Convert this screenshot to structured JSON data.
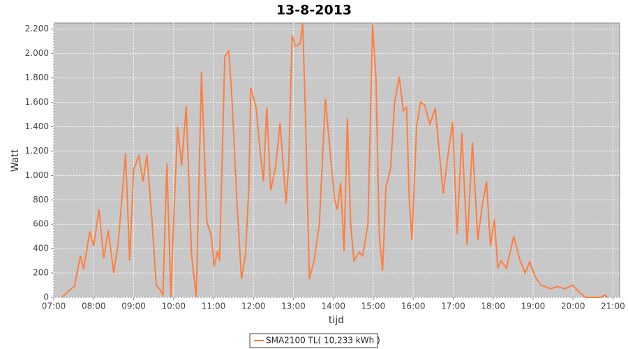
{
  "chart_data": {
    "type": "line",
    "title": "13-8-2013",
    "x_label": "tijd",
    "y_label": "Watt",
    "x": [
      "07:12",
      "07:24",
      "07:31",
      "07:40",
      "07:45",
      "07:54",
      "08:00",
      "08:08",
      "08:15",
      "08:22",
      "08:30",
      "08:37",
      "08:48",
      "08:54",
      "09:00",
      "09:08",
      "09:14",
      "09:20",
      "09:28",
      "09:34",
      "09:40",
      "09:44",
      "09:50",
      "09:56",
      "10:00",
      "10:06",
      "10:12",
      "10:19",
      "10:27",
      "10:34",
      "10:42",
      "10:50",
      "10:57",
      "11:01",
      "11:06",
      "11:09",
      "11:17",
      "11:23",
      "11:28",
      "11:35",
      "11:42",
      "11:48",
      "11:53",
      "11:56",
      "12:04",
      "12:10",
      "12:15",
      "12:20",
      "12:26",
      "12:33",
      "12:40",
      "12:49",
      "12:53",
      "12:58",
      "13:03",
      "13:10",
      "13:14",
      "13:18",
      "13:24",
      "13:31",
      "13:39",
      "13:48",
      "13:55",
      "14:02",
      "14:06",
      "14:11",
      "14:16",
      "14:21",
      "14:26",
      "14:31",
      "14:39",
      "14:44",
      "14:52",
      "14:59",
      "15:04",
      "15:09",
      "15:14",
      "15:19",
      "15:26",
      "15:32",
      "15:39",
      "15:45",
      "15:50",
      "15:54",
      "15:58",
      "16:05",
      "16:11",
      "16:17",
      "16:25",
      "16:33",
      "16:39",
      "16:45",
      "16:53",
      "16:59",
      "17:06",
      "17:13",
      "17:21",
      "17:29",
      "17:37",
      "17:43",
      "17:50",
      "17:56",
      "18:02",
      "18:07",
      "18:12",
      "18:20",
      "18:31",
      "18:40",
      "18:48",
      "18:55",
      "19:03",
      "19:12",
      "19:27",
      "19:36",
      "19:48",
      "19:59",
      "20:12",
      "20:19",
      "20:42",
      "20:48",
      "20:52"
    ],
    "series": [
      {
        "name": "SMA2100 TL( 10,233 kWh )",
        "color": "#ff7f3f",
        "values": [
          0,
          60,
          90,
          340,
          230,
          540,
          420,
          720,
          320,
          550,
          200,
          450,
          1180,
          300,
          1050,
          1160,
          950,
          1170,
          600,
          100,
          60,
          20,
          1100,
          0,
          600,
          1400,
          1080,
          1570,
          350,
          0,
          1850,
          620,
          500,
          250,
          380,
          300,
          1980,
          2020,
          1600,
          800,
          150,
          350,
          900,
          1720,
          1560,
          1200,
          950,
          1560,
          880,
          1060,
          1430,
          770,
          1100,
          2150,
          2060,
          2080,
          2250,
          1500,
          150,
          300,
          600,
          1630,
          1200,
          800,
          720,
          940,
          380,
          1470,
          600,
          300,
          370,
          340,
          600,
          2240,
          1800,
          500,
          220,
          900,
          1060,
          1600,
          1810,
          1530,
          1560,
          800,
          470,
          1400,
          1600,
          1580,
          1420,
          1550,
          1200,
          850,
          1200,
          1440,
          520,
          1350,
          430,
          1270,
          470,
          730,
          950,
          420,
          640,
          240,
          300,
          240,
          500,
          310,
          200,
          290,
          170,
          100,
          70,
          90,
          70,
          100,
          30,
          0,
          0,
          20,
          0
        ]
      }
    ],
    "xlim": [
      "07:00",
      "21:10"
    ],
    "xticks": [
      "07:00",
      "08:00",
      "09:00",
      "10:00",
      "11:00",
      "12:00",
      "13:00",
      "14:00",
      "15:00",
      "16:00",
      "17:00",
      "18:00",
      "19:00",
      "20:00",
      "21:00"
    ],
    "ylim": [
      0,
      2250
    ],
    "yticks": [
      0,
      200,
      400,
      600,
      800,
      {
        "value": 1000,
        "label": "1.000"
      },
      {
        "value": 1200,
        "label": "1.200"
      },
      {
        "value": 1400,
        "label": "1.400"
      },
      {
        "value": 1600,
        "label": "1.600"
      },
      {
        "value": 1800,
        "label": "1.800"
      },
      {
        "value": 2000,
        "label": "2.000"
      },
      {
        "value": 2200,
        "label": "2.200"
      }
    ],
    "grid": true,
    "legend": "bottom"
  }
}
